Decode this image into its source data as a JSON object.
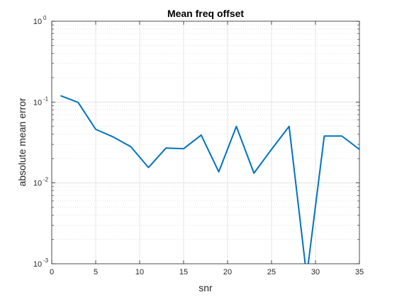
{
  "chart_data": {
    "type": "line",
    "title": "Mean freq offset",
    "xlabel": "snr",
    "ylabel": "absolute mean error",
    "xlim": [
      0,
      35
    ],
    "ylim": [
      0.001,
      1
    ],
    "yscale": "log",
    "grid": true,
    "x_ticks": [
      "0",
      "5",
      "10",
      "15",
      "20",
      "25",
      "30",
      "35"
    ],
    "y_ticks": [
      {
        "base": "10",
        "exp": "-3"
      },
      {
        "base": "10",
        "exp": "-2"
      },
      {
        "base": "10",
        "exp": "-1"
      },
      {
        "base": "10",
        "exp": "0"
      }
    ],
    "series": [
      {
        "color": "#0072BD",
        "x": [
          1,
          3,
          5,
          7,
          9,
          11,
          13,
          15,
          17,
          19,
          21,
          23,
          25,
          27,
          29,
          31,
          33,
          35
        ],
        "y": [
          0.12,
          0.099,
          0.046,
          0.037,
          0.028,
          0.0155,
          0.027,
          0.0265,
          0.039,
          0.0137,
          0.05,
          0.0132,
          0.026,
          0.05,
          0.0007,
          0.038,
          0.038,
          0.026
        ]
      }
    ]
  }
}
